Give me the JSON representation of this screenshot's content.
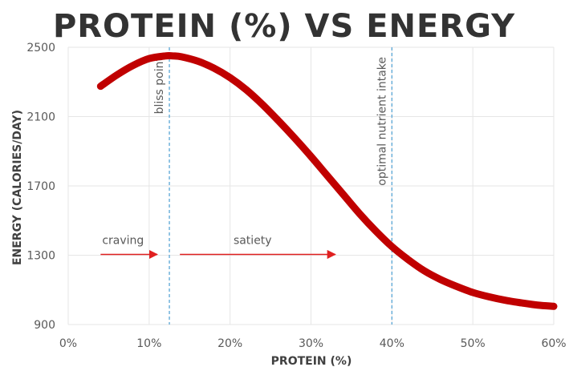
{
  "chart_data": {
    "type": "line",
    "title": "PROTEIN (%) VS ENERGY",
    "xlabel": "PROTEIN (%)",
    "ylabel": "ENERGY (CALORIES/DAY)",
    "xlim": [
      0,
      60
    ],
    "ylim": [
      900,
      2500
    ],
    "x_ticks": [
      0,
      10,
      20,
      30,
      40,
      50,
      60
    ],
    "x_tick_labels": [
      "0%",
      "10%",
      "20%",
      "30%",
      "40%",
      "50%",
      "60%"
    ],
    "y_ticks": [
      900,
      1300,
      1700,
      2100,
      2500
    ],
    "y_tick_labels": [
      "900",
      "1300",
      "1700",
      "2100",
      "2500"
    ],
    "grid": true,
    "legend": "none",
    "series": [
      {
        "color": "#c00000",
        "x": [
          4,
          6,
          8,
          10,
          12,
          13,
          14,
          16,
          18,
          20,
          22,
          24,
          26,
          28,
          30,
          32,
          34,
          36,
          38,
          40,
          42,
          44,
          46,
          48,
          50,
          52,
          54,
          56,
          58,
          60
        ],
        "y": [
          2275,
          2340,
          2395,
          2435,
          2450,
          2450,
          2445,
          2420,
          2380,
          2325,
          2255,
          2170,
          2075,
          1975,
          1870,
          1760,
          1650,
          1540,
          1440,
          1350,
          1275,
          1210,
          1160,
          1120,
          1085,
          1060,
          1040,
          1025,
          1012,
          1005
        ]
      }
    ],
    "reference_lines": [
      {
        "x": 12.5,
        "label": "bliss point"
      },
      {
        "x": 40,
        "label": "optimal nutrient intake"
      }
    ],
    "arrows": [
      {
        "label": "craving",
        "x_start": 4,
        "x_end": 11,
        "y": 1300
      },
      {
        "label": "satiety",
        "x_start": 13.8,
        "x_end": 33,
        "y": 1300
      }
    ]
  }
}
